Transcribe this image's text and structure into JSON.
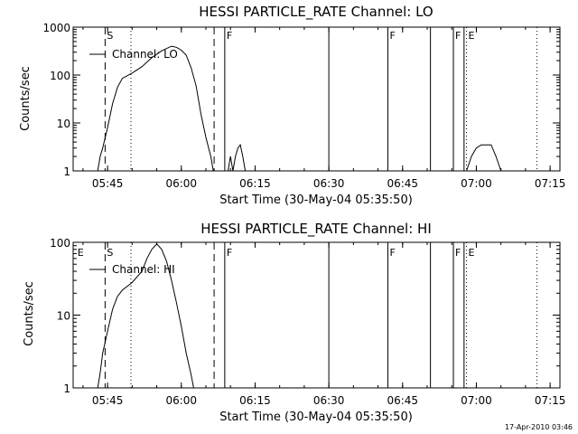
{
  "footer": {
    "timestamp": "17-Apr-2010 03:46"
  },
  "chart_data": [
    {
      "type": "line",
      "title": "HESSI PARTICLE_RATE Channel: LO",
      "xlabel": "Start Time (30-May-04 05:35:50)",
      "ylabel": "Counts/sec",
      "log_y": true,
      "ylim": [
        1,
        1000
      ],
      "yticks": [
        1,
        10,
        100,
        1000
      ],
      "xticks": [
        "05:45",
        "06:00",
        "06:15",
        "06:30",
        "06:45",
        "07:00",
        "07:15"
      ],
      "legend": {
        "label": "Channel: LO",
        "placement": "top-left"
      },
      "flags": [
        "S",
        "F",
        "F",
        "F",
        "E"
      ],
      "series": [
        {
          "name": "Channel: LO",
          "segments": [
            [
              [
                "05:43:00",
                1
              ],
              [
                "05:43:30",
                2
              ],
              [
                "05:44:00",
                3
              ],
              [
                "05:45:00",
                8
              ],
              [
                "05:46:00",
                25
              ],
              [
                "05:47:00",
                55
              ],
              [
                "05:48:00",
                85
              ],
              [
                "05:50:00",
                110
              ],
              [
                "05:52:00",
                150
              ],
              [
                "05:54:00",
                230
              ],
              [
                "05:56:00",
                320
              ],
              [
                "05:58:00",
                400
              ],
              [
                "05:59:00",
                380
              ],
              [
                "06:00:00",
                330
              ],
              [
                "06:01:00",
                260
              ],
              [
                "06:02:00",
                140
              ],
              [
                "06:03:00",
                60
              ],
              [
                "06:04:00",
                15
              ],
              [
                "06:05:00",
                5
              ],
              [
                "06:06:00",
                2
              ],
              [
                "06:06:30",
                1
              ]
            ],
            [
              [
                "06:09:30",
                1
              ],
              [
                "06:10:00",
                2
              ],
              [
                "06:10:30",
                1
              ],
              [
                "06:11:00",
                2
              ],
              [
                "06:11:30",
                3
              ],
              [
                "06:12:00",
                3.5
              ],
              [
                "06:12:30",
                2
              ],
              [
                "06:13:00",
                1
              ]
            ],
            [
              [
                "06:58:00",
                1
              ],
              [
                "06:59:00",
                2
              ],
              [
                "07:00:00",
                3
              ],
              [
                "07:01:00",
                3.5
              ],
              [
                "07:02:00",
                3.5
              ],
              [
                "07:03:00",
                3.5
              ],
              [
                "07:04:00",
                2
              ],
              [
                "07:05:00",
                1
              ]
            ]
          ]
        }
      ]
    },
    {
      "type": "line",
      "title": "HESSI PARTICLE_RATE Channel: HI",
      "xlabel": "Start Time (30-May-04 05:35:50)",
      "ylabel": "Counts/sec",
      "log_y": true,
      "ylim": [
        1,
        100
      ],
      "yticks": [
        1,
        10,
        100
      ],
      "xticks": [
        "05:45",
        "06:00",
        "06:15",
        "06:30",
        "06:45",
        "07:00",
        "07:15"
      ],
      "legend": {
        "label": "Channel: HI",
        "placement": "top-left"
      },
      "flags": [
        "E",
        "S",
        "F",
        "F",
        "F",
        "E"
      ],
      "series": [
        {
          "name": "Channel: HI",
          "segments": [
            [
              [
                "05:43:00",
                1
              ],
              [
                "05:43:30",
                1.6
              ],
              [
                "05:44:00",
                3
              ],
              [
                "05:45:00",
                6
              ],
              [
                "05:46:00",
                12
              ],
              [
                "05:47:00",
                18
              ],
              [
                "05:48:00",
                22
              ],
              [
                "05:50:00",
                28
              ],
              [
                "05:52:00",
                40
              ],
              [
                "05:53:00",
                60
              ],
              [
                "05:54:00",
                80
              ],
              [
                "05:55:00",
                95
              ],
              [
                "05:56:00",
                80
              ],
              [
                "05:57:00",
                55
              ],
              [
                "05:58:00",
                30
              ],
              [
                "05:59:00",
                15
              ],
              [
                "06:00:00",
                7
              ],
              [
                "06:01:00",
                3
              ],
              [
                "06:02:00",
                1.5
              ],
              [
                "06:02:30",
                1
              ]
            ]
          ]
        }
      ]
    }
  ]
}
